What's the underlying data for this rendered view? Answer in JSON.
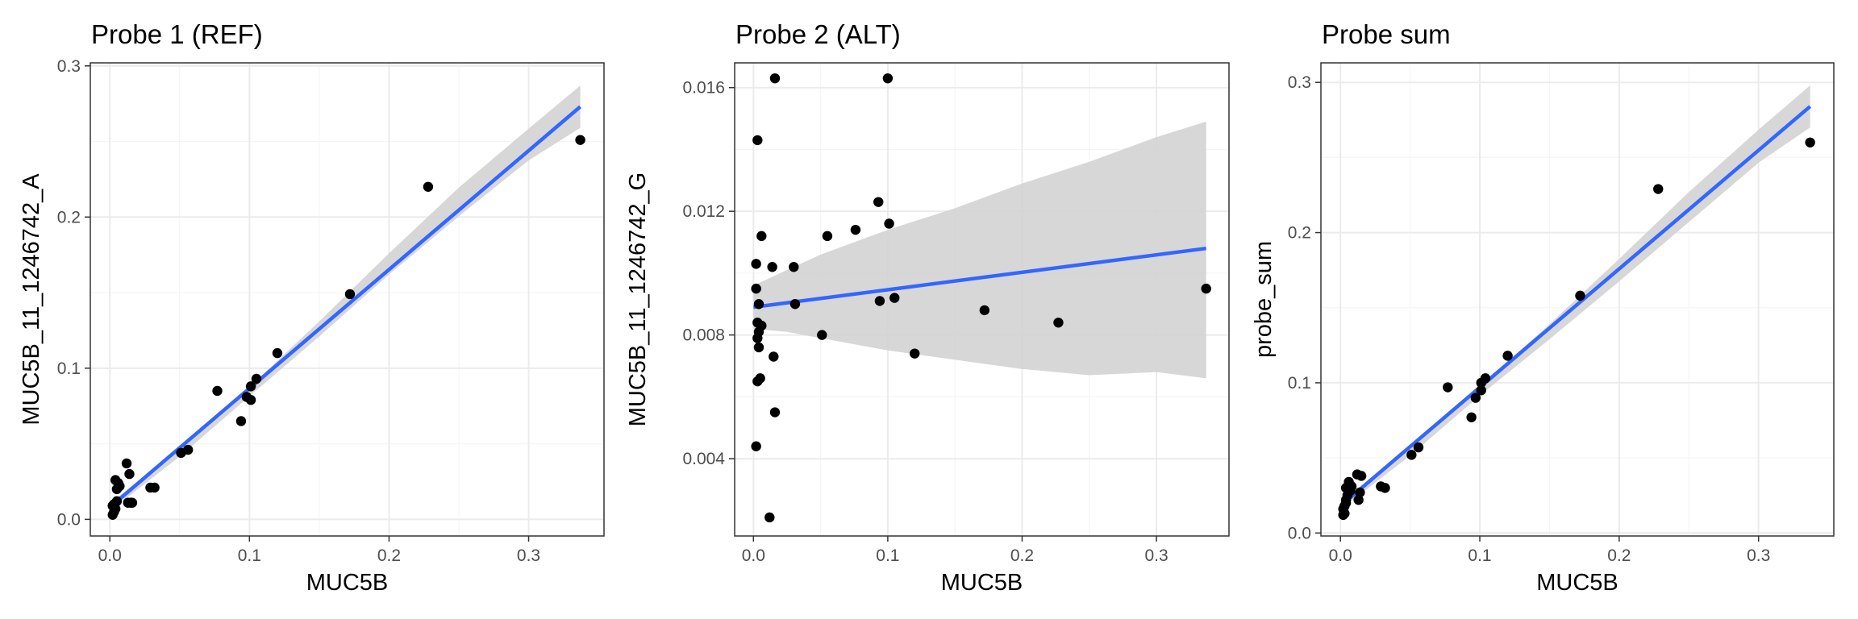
{
  "chart_data": [
    {
      "type": "scatter",
      "title": "Probe 1 (REF)",
      "xlabel": "MUC5B",
      "ylabel": "MUC5B_11_1246742_A",
      "xlim": [
        -0.014,
        0.354
      ],
      "ylim": [
        -0.011,
        0.302
      ],
      "xticks": [
        0.0,
        0.1,
        0.2,
        0.3
      ],
      "xtick_labels": [
        "0.0",
        "0.1",
        "0.2",
        "0.3"
      ],
      "yticks": [
        0.0,
        0.1,
        0.2,
        0.3
      ],
      "ytick_labels": [
        "0.0",
        "0.1",
        "0.2",
        "0.3"
      ],
      "grid": true,
      "points": [
        [
          0.002,
          0.003
        ],
        [
          0.003,
          0.005
        ],
        [
          0.004,
          0.007
        ],
        [
          0.002,
          0.009
        ],
        [
          0.003,
          0.01
        ],
        [
          0.005,
          0.012
        ],
        [
          0.005,
          0.02
        ],
        [
          0.004,
          0.026
        ],
        [
          0.006,
          0.024
        ],
        [
          0.007,
          0.022
        ],
        [
          0.012,
          0.037
        ],
        [
          0.014,
          0.03
        ],
        [
          0.015,
          0.011
        ],
        [
          0.016,
          0.011
        ],
        [
          0.013,
          0.011
        ],
        [
          0.029,
          0.021
        ],
        [
          0.032,
          0.021
        ],
        [
          0.051,
          0.044
        ],
        [
          0.056,
          0.046
        ],
        [
          0.077,
          0.085
        ],
        [
          0.094,
          0.065
        ],
        [
          0.098,
          0.081
        ],
        [
          0.101,
          0.079
        ],
        [
          0.101,
          0.088
        ],
        [
          0.105,
          0.093
        ],
        [
          0.12,
          0.11
        ],
        [
          0.172,
          0.149
        ],
        [
          0.228,
          0.22
        ],
        [
          0.337,
          0.251
        ]
      ],
      "trend": {
        "x": [
          0.0,
          0.337
        ],
        "y": [
          0.008,
          0.273
        ]
      },
      "band_upper": [
        [
          0.0,
          0.0105
        ],
        [
          0.05,
          0.0465
        ],
        [
          0.1,
          0.0875
        ],
        [
          0.15,
          0.131
        ],
        [
          0.2,
          0.176
        ],
        [
          0.25,
          0.2195
        ],
        [
          0.3,
          0.2585
        ],
        [
          0.337,
          0.287
        ]
      ],
      "band_lower": [
        [
          0.0,
          0.0055
        ],
        [
          0.05,
          0.0415
        ],
        [
          0.1,
          0.0815
        ],
        [
          0.15,
          0.121
        ],
        [
          0.2,
          0.162
        ],
        [
          0.25,
          0.2005
        ],
        [
          0.3,
          0.2375
        ],
        [
          0.337,
          0.259
        ]
      ]
    },
    {
      "type": "scatter",
      "title": "Probe 2 (ALT)",
      "xlabel": "MUC5B",
      "ylabel": "MUC5B_11_1246742_G",
      "xlim": [
        -0.014,
        0.354
      ],
      "ylim": [
        0.0015,
        0.0168
      ],
      "xticks": [
        0.0,
        0.1,
        0.2,
        0.3
      ],
      "xtick_labels": [
        "0.0",
        "0.1",
        "0.2",
        "0.3"
      ],
      "yticks": [
        0.004,
        0.008,
        0.012,
        0.016
      ],
      "ytick_labels": [
        "0.004",
        "0.008",
        "0.012",
        "0.016"
      ],
      "grid": true,
      "points": [
        [
          0.016,
          0.0163
        ],
        [
          0.1,
          0.0163
        ],
        [
          0.003,
          0.0143
        ],
        [
          0.093,
          0.0123
        ],
        [
          0.076,
          0.0114
        ],
        [
          0.101,
          0.0116
        ],
        [
          0.006,
          0.0112
        ],
        [
          0.055,
          0.0112
        ],
        [
          0.002,
          0.0103
        ],
        [
          0.014,
          0.0102
        ],
        [
          0.03,
          0.0102
        ],
        [
          0.002,
          0.0095
        ],
        [
          0.337,
          0.0095
        ],
        [
          0.105,
          0.0092
        ],
        [
          0.094,
          0.0091
        ],
        [
          0.004,
          0.009
        ],
        [
          0.031,
          0.009
        ],
        [
          0.172,
          0.0088
        ],
        [
          0.227,
          0.0084
        ],
        [
          0.003,
          0.0084
        ],
        [
          0.006,
          0.0083
        ],
        [
          0.004,
          0.0081
        ],
        [
          0.003,
          0.0079
        ],
        [
          0.051,
          0.008
        ],
        [
          0.004,
          0.0076
        ],
        [
          0.015,
          0.0073
        ],
        [
          0.12,
          0.0074
        ],
        [
          0.005,
          0.0066
        ],
        [
          0.003,
          0.0065
        ],
        [
          0.016,
          0.0055
        ],
        [
          0.002,
          0.0044
        ],
        [
          0.012,
          0.0021
        ]
      ],
      "trend": {
        "x": [
          0.0,
          0.337
        ],
        "y": [
          0.0089,
          0.0108
        ]
      },
      "band_upper": [
        [
          0.0,
          0.0096
        ],
        [
          0.025,
          0.0101
        ],
        [
          0.05,
          0.0106
        ],
        [
          0.1,
          0.0114
        ],
        [
          0.15,
          0.0121
        ],
        [
          0.2,
          0.0129
        ],
        [
          0.25,
          0.0136
        ],
        [
          0.3,
          0.0144
        ],
        [
          0.337,
          0.0149
        ]
      ],
      "band_lower": [
        [
          0.0,
          0.0082
        ],
        [
          0.025,
          0.0081
        ],
        [
          0.05,
          0.0079
        ],
        [
          0.1,
          0.0075
        ],
        [
          0.15,
          0.0072
        ],
        [
          0.2,
          0.0069
        ],
        [
          0.25,
          0.0067
        ],
        [
          0.3,
          0.0068
        ],
        [
          0.337,
          0.0066
        ]
      ]
    },
    {
      "type": "scatter",
      "title": "Probe sum",
      "xlabel": "MUC5B",
      "ylabel": "probe_sum",
      "xlim": [
        -0.014,
        0.354
      ],
      "ylim": [
        -0.002,
        0.313
      ],
      "xticks": [
        0.0,
        0.1,
        0.2,
        0.3
      ],
      "xtick_labels": [
        "0.0",
        "0.1",
        "0.2",
        "0.3"
      ],
      "yticks": [
        0.0,
        0.1,
        0.2,
        0.3
      ],
      "ytick_labels": [
        "0.0",
        "0.1",
        "0.2",
        "0.3"
      ],
      "grid": true,
      "points": [
        [
          0.002,
          0.012
        ],
        [
          0.003,
          0.013
        ],
        [
          0.002,
          0.016
        ],
        [
          0.003,
          0.018
        ],
        [
          0.004,
          0.02
        ],
        [
          0.004,
          0.022
        ],
        [
          0.005,
          0.025
        ],
        [
          0.004,
          0.03
        ],
        [
          0.006,
          0.034
        ],
        [
          0.007,
          0.028
        ],
        [
          0.008,
          0.031
        ],
        [
          0.012,
          0.039
        ],
        [
          0.015,
          0.038
        ],
        [
          0.014,
          0.027
        ],
        [
          0.013,
          0.022
        ],
        [
          0.029,
          0.031
        ],
        [
          0.032,
          0.03
        ],
        [
          0.051,
          0.052
        ],
        [
          0.056,
          0.057
        ],
        [
          0.077,
          0.097
        ],
        [
          0.094,
          0.077
        ],
        [
          0.097,
          0.09
        ],
        [
          0.101,
          0.095
        ],
        [
          0.101,
          0.1
        ],
        [
          0.104,
          0.103
        ],
        [
          0.12,
          0.118
        ],
        [
          0.172,
          0.158
        ],
        [
          0.228,
          0.229
        ],
        [
          0.337,
          0.26
        ]
      ],
      "trend": {
        "x": [
          0.0,
          0.337
        ],
        "y": [
          0.018,
          0.284
        ]
      },
      "band_upper": [
        [
          0.0,
          0.0205
        ],
        [
          0.05,
          0.0565
        ],
        [
          0.1,
          0.0975
        ],
        [
          0.15,
          0.139
        ],
        [
          0.2,
          0.1825
        ],
        [
          0.25,
          0.227
        ],
        [
          0.3,
          0.2685
        ],
        [
          0.337,
          0.298
        ]
      ],
      "band_lower": [
        [
          0.0,
          0.0155
        ],
        [
          0.05,
          0.0515
        ],
        [
          0.1,
          0.0915
        ],
        [
          0.15,
          0.129
        ],
        [
          0.2,
          0.1675
        ],
        [
          0.25,
          0.207
        ],
        [
          0.3,
          0.2465
        ],
        [
          0.337,
          0.27
        ]
      ]
    }
  ],
  "colors": {
    "panel_background": "#ffffff",
    "panel_border": "#333333",
    "grid_major": "#ebebeb",
    "grid_minor": "#f5f5f5",
    "trend_line": "#3366ff",
    "confidence_band": "#d3d3d3",
    "point": "#000000"
  }
}
